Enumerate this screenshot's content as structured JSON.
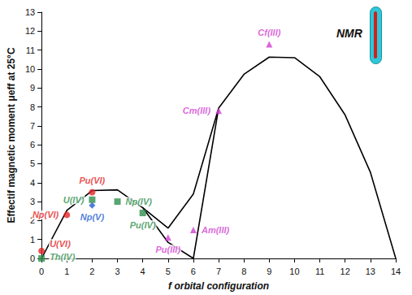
{
  "chart_data": {
    "type": "scatter",
    "x_label": "f orbital configuration",
    "y_label": "Effectif magnetic moment μeff at 25°C",
    "xlim": [
      0,
      14
    ],
    "xticks": [
      0,
      1,
      2,
      3,
      4,
      5,
      6,
      7,
      8,
      9,
      10,
      11,
      12,
      13,
      14
    ],
    "ylim": [
      0,
      13
    ],
    "yticks": [
      0,
      1,
      2,
      3,
      4,
      5,
      6,
      7,
      8,
      9,
      10,
      11,
      12,
      13
    ],
    "grid": false,
    "annotations": [
      "NMR"
    ],
    "series": [
      {
        "type": "line",
        "color": "#000000",
        "line_style": "solid",
        "x": [
          0,
          1,
          2,
          3,
          4,
          5,
          6,
          7,
          8,
          9,
          10,
          11,
          12,
          13,
          14
        ],
        "values": [
          0,
          2.54,
          3.58,
          3.62,
          2.68,
          1.6,
          3.4,
          7.94,
          9.72,
          10.63,
          10.6,
          9.59,
          7.57,
          4.54,
          0
        ]
      },
      {
        "type": "line",
        "color": "#000000",
        "line_style": "solid",
        "x": [
          4,
          5,
          6,
          7
        ],
        "values": [
          2.68,
          0.85,
          0,
          7.94
        ]
      },
      {
        "type": "scatter",
        "color": "#e32626",
        "marker": "circle",
        "x": [
          0,
          1,
          2
        ],
        "values": [
          0.4,
          2.3,
          3.5
        ],
        "labels": [
          "U(VI)",
          "Np(VI)",
          "Pu(VI)"
        ]
      },
      {
        "type": "scatter",
        "color": "#2f8f4e",
        "marker": "square",
        "x": [
          0,
          2,
          3,
          4
        ],
        "values": [
          0,
          3.1,
          3.0,
          2.4
        ],
        "labels": [
          "Th(IV)",
          "U(IV)",
          "Np(IV)",
          "Pu(IV)"
        ]
      },
      {
        "type": "scatter",
        "color": "#1f5fd1",
        "marker": "diamond",
        "x": [
          2
        ],
        "values": [
          2.8
        ],
        "labels": [
          "Np(V)"
        ]
      },
      {
        "type": "scatter",
        "color": "#d23fd2",
        "marker": "triangle",
        "x": [
          5,
          6,
          7,
          9
        ],
        "values": [
          1.1,
          1.5,
          7.8,
          11.3
        ],
        "labels": [
          "Pu(III)",
          "Am(III)",
          "Cm(III)",
          "Cf(III)"
        ]
      }
    ]
  }
}
